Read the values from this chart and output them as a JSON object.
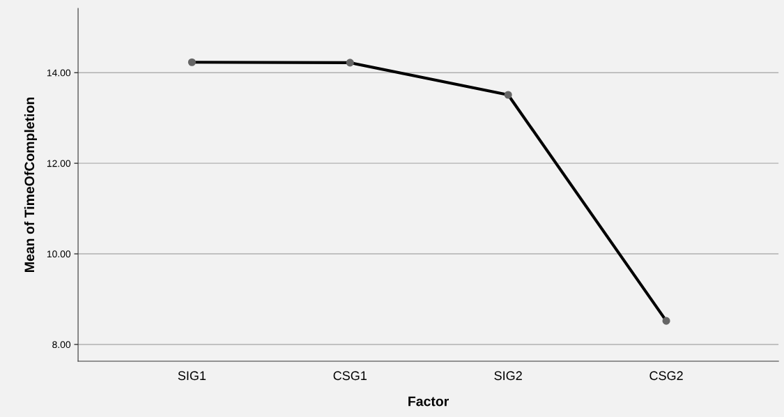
{
  "chart_data": {
    "type": "line",
    "xlabel": "Factor",
    "ylabel": "Mean of TimeOfCompletion",
    "categories": [
      "SIG1",
      "CSG1",
      "SIG2",
      "CSG2"
    ],
    "series": [
      {
        "color": "#000000",
        "values": [
          14.23,
          14.22,
          13.51,
          8.52
        ]
      }
    ],
    "ylim": [
      7.63,
      15.42
    ],
    "yticks": [
      {
        "value": 8,
        "label": "8.00"
      },
      {
        "value": 10,
        "label": "10.00"
      },
      {
        "value": 12,
        "label": "12.00"
      },
      {
        "value": 14,
        "label": "14.00"
      }
    ],
    "grid": "y",
    "marker": "circle",
    "line_style": "solid"
  }
}
